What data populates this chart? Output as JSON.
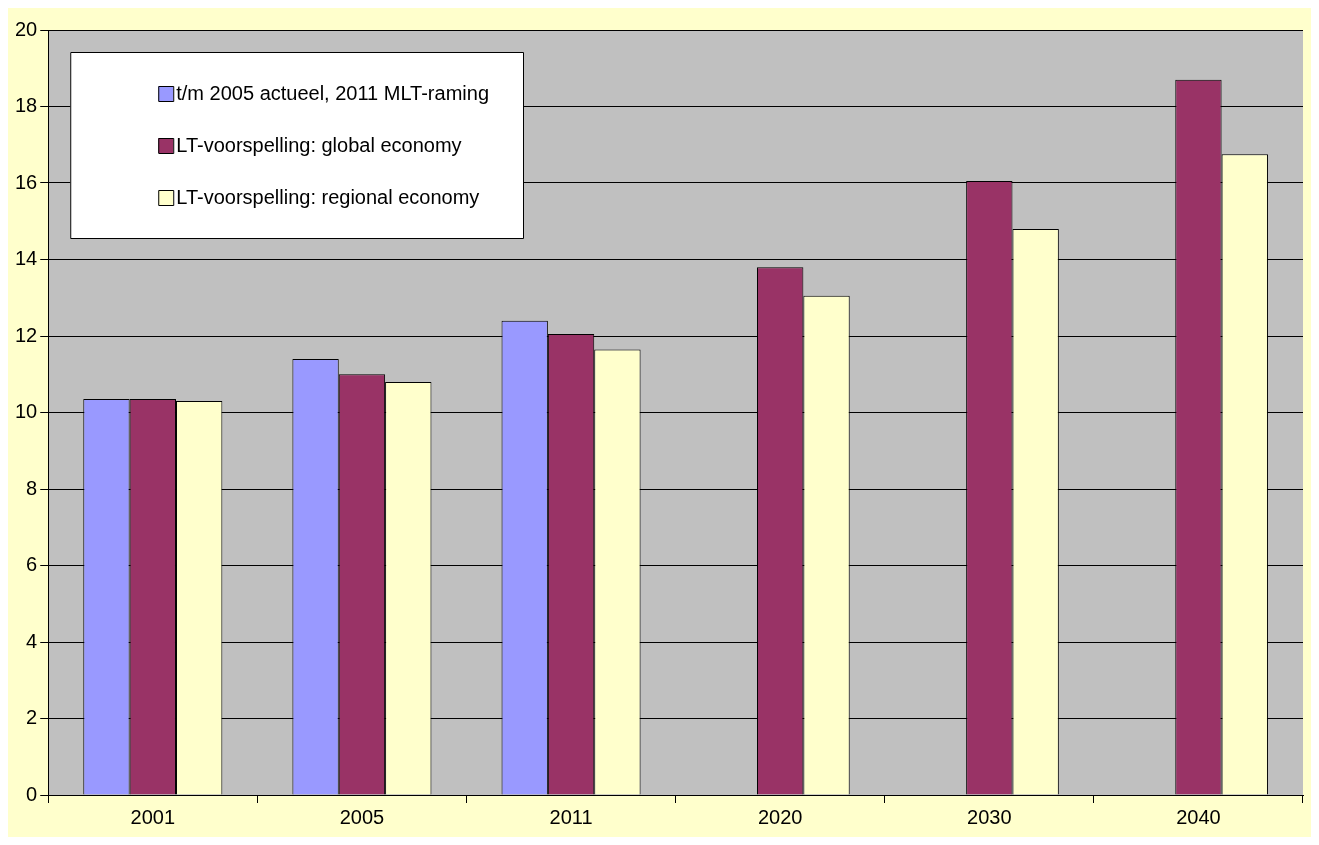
{
  "chart_data": {
    "type": "bar",
    "categories": [
      "2001",
      "2005",
      "2011",
      "2020",
      "2030",
      "2040"
    ],
    "series": [
      {
        "name": "t/m 2005 actueel, 2011 MLT-raming",
        "color": "#9999ff",
        "values": [
          10.35,
          11.4,
          12.4,
          null,
          null,
          null
        ]
      },
      {
        "name": "LT-voorspelling: global economy",
        "color": "#993366",
        "values": [
          10.35,
          11.0,
          12.05,
          13.8,
          16.05,
          18.7
        ]
      },
      {
        "name": "LT-voorspelling: regional economy",
        "color": "#ffffcc",
        "values": [
          10.3,
          10.8,
          11.65,
          13.05,
          14.8,
          16.75
        ]
      }
    ],
    "ylim": [
      0,
      20
    ],
    "yticks": [
      0,
      2,
      4,
      6,
      8,
      10,
      12,
      14,
      16,
      18,
      20
    ],
    "grid": "y",
    "legend": "top left"
  }
}
